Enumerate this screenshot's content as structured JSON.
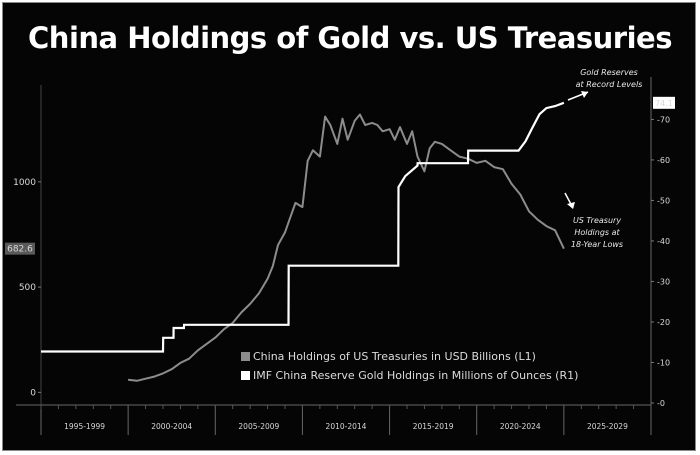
{
  "title": "China Holdings of Gold vs. US Treasuries",
  "colors": {
    "background": "#050505",
    "treasuries": "#8c8c8c",
    "gold": "#ffffff",
    "text": "#ffffff"
  },
  "chart_data": {
    "type": "line",
    "title": "China Holdings of Gold vs. US Treasuries",
    "xlabel": "",
    "ylabel_left": "",
    "ylabel_right": "",
    "x_tick_labels": [
      "1995-1999",
      "2000-2004",
      "2005-2009",
      "2010-2014",
      "2015-2019",
      "2020-2024",
      "2025-2029"
    ],
    "xlim": [
      1995,
      2030
    ],
    "left_axis": {
      "ylim": [
        -60,
        1460
      ],
      "ticks": [
        0,
        500,
        1000
      ],
      "tick_labels": [
        "0",
        "500",
        "1000"
      ]
    },
    "right_axis": {
      "ylim": [
        -0.5,
        78.5
      ],
      "ticks": [
        0,
        10,
        20,
        30,
        40,
        50,
        60,
        70
      ],
      "tick_labels": [
        "0",
        "10",
        "20",
        "30",
        "40",
        "50",
        "60",
        "70"
      ]
    },
    "last_value_labels": {
      "left": "682.6",
      "right": "74.1"
    },
    "annotations": [
      {
        "text_lines": [
          "Gold Reserves",
          "at Record Levels"
        ]
      },
      {
        "text_lines": [
          "US Treasury",
          "Holdings at",
          "18-Year Lows"
        ]
      }
    ],
    "legend": {
      "position": "bottom-right"
    },
    "series": [
      {
        "name": "China Holdings of US Treasuries in USD Billions (L1)",
        "axis": "left",
        "x": [
          2000.0,
          2000.5,
          2001.0,
          2001.5,
          2002.0,
          2002.5,
          2003.0,
          2003.5,
          2004.0,
          2004.5,
          2005.0,
          2005.5,
          2006.0,
          2006.5,
          2007.0,
          2007.5,
          2008.0,
          2008.3,
          2008.6,
          2009.0,
          2009.3,
          2009.6,
          2010.0,
          2010.3,
          2010.6,
          2011.0,
          2011.3,
          2011.6,
          2012.0,
          2012.3,
          2012.6,
          2013.0,
          2013.3,
          2013.6,
          2014.0,
          2014.3,
          2014.6,
          2015.0,
          2015.3,
          2015.6,
          2016.0,
          2016.3,
          2016.6,
          2017.0,
          2017.3,
          2017.6,
          2018.0,
          2018.5,
          2019.0,
          2019.5,
          2020.0,
          2020.5,
          2021.0,
          2021.5,
          2022.0,
          2022.5,
          2023.0,
          2023.5,
          2024.0,
          2024.5,
          2025.0
        ],
        "values": [
          60,
          55,
          65,
          75,
          90,
          110,
          140,
          160,
          200,
          230,
          260,
          300,
          330,
          380,
          420,
          470,
          540,
          600,
          700,
          760,
          830,
          900,
          880,
          1100,
          1150,
          1120,
          1310,
          1270,
          1180,
          1300,
          1200,
          1290,
          1320,
          1270,
          1280,
          1270,
          1240,
          1250,
          1200,
          1260,
          1180,
          1240,
          1120,
          1050,
          1160,
          1190,
          1180,
          1150,
          1120,
          1110,
          1090,
          1100,
          1070,
          1060,
          990,
          940,
          860,
          820,
          790,
          770,
          682.6
        ]
      },
      {
        "name": "IMF China Reserve Gold Holdings in Millions of Ounces (R1)",
        "axis": "right",
        "step": true,
        "x": [
          1995.0,
          2002.0,
          2002.01,
          2002.6,
          2002.61,
          2003.2,
          2003.21,
          2009.2,
          2009.21,
          2015.5,
          2015.51,
          2015.9,
          2016.6,
          2016.61,
          2019.5,
          2019.51,
          2022.4,
          2022.8,
          2023.2,
          2023.6,
          2024.0,
          2024.5,
          2025.0
        ],
        "values": [
          12.7,
          12.7,
          16.1,
          16.1,
          18.5,
          18.5,
          19.3,
          19.3,
          33.9,
          33.9,
          53.3,
          56.0,
          58.6,
          59.2,
          59.2,
          62.3,
          62.3,
          64.6,
          68.0,
          71.3,
          72.8,
          73.3,
          74.1
        ]
      }
    ]
  }
}
